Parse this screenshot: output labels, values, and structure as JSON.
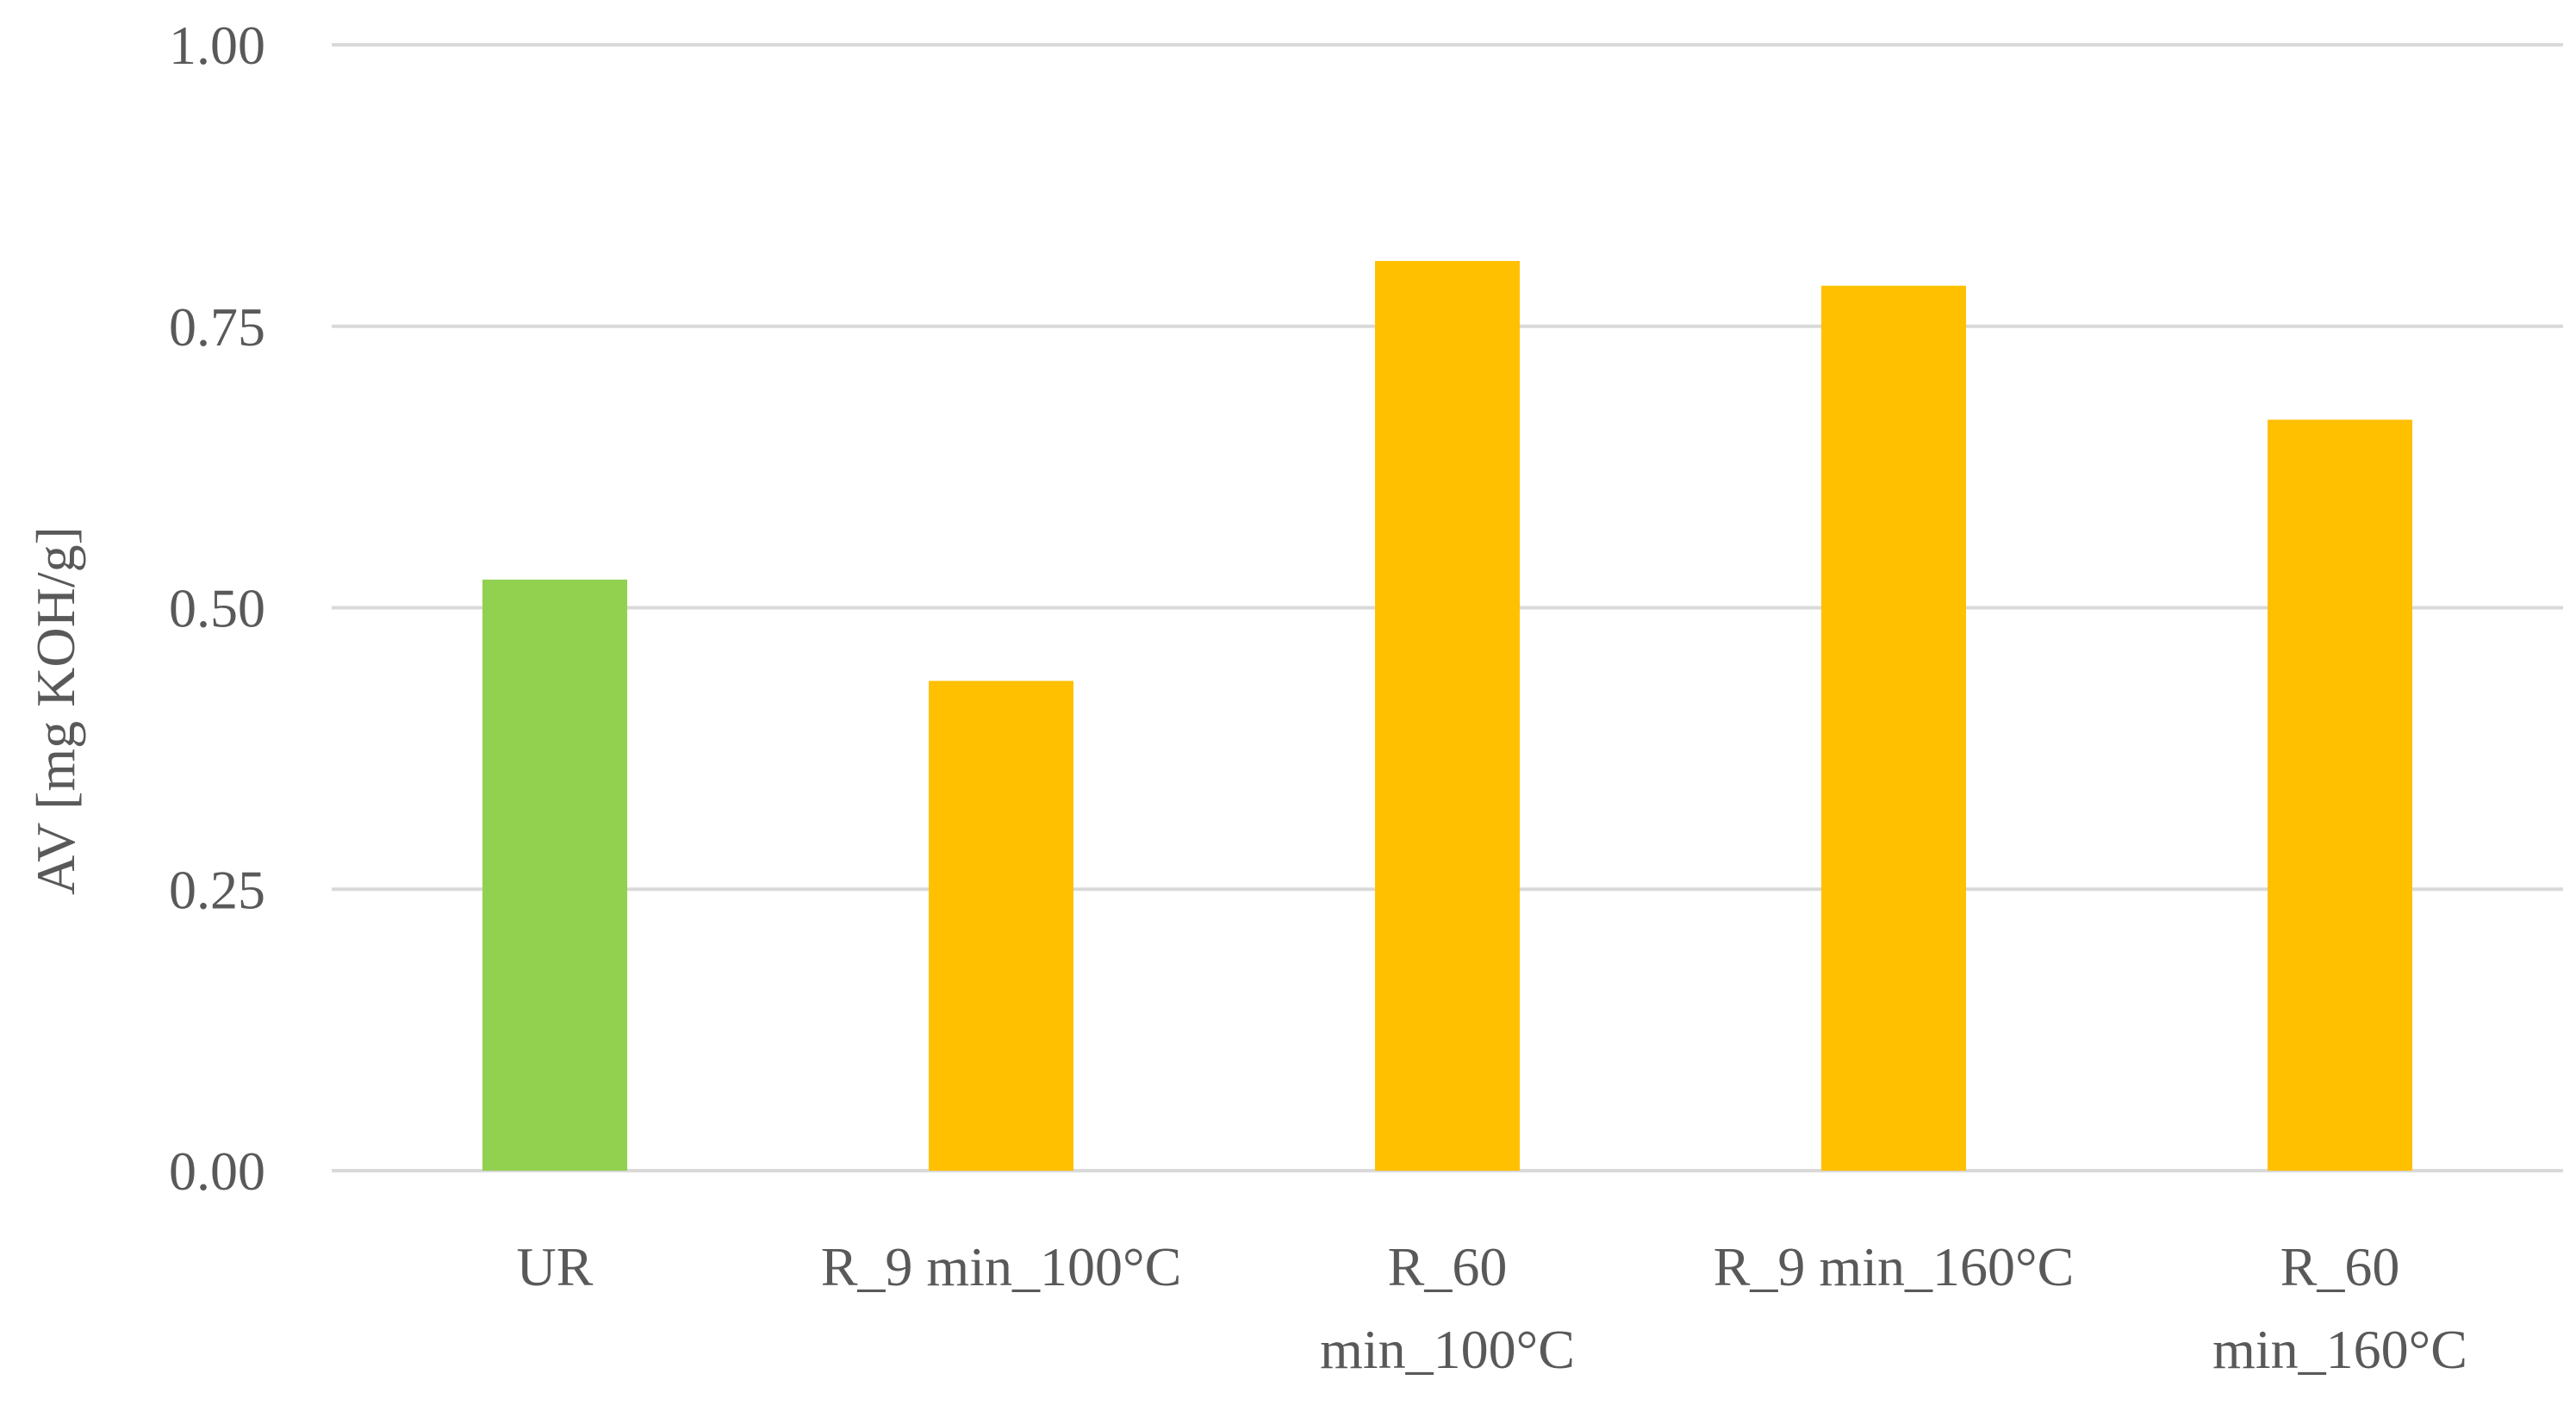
{
  "chart_data": {
    "type": "bar",
    "title": "",
    "xlabel": "",
    "ylabel": "AV [mg KOH/g]",
    "ylim": [
      0,
      1
    ],
    "yticks": [
      "0.00",
      "0.25",
      "0.50",
      "0.75",
      "1.00"
    ],
    "grid": true,
    "categories": [
      [
        "UR"
      ],
      [
        "R_9 min_100°C"
      ],
      [
        "R_60",
        "min_100°C"
      ],
      [
        "R_9 min_160°C"
      ],
      [
        "R_60",
        "min_160°C"
      ]
    ],
    "values": [
      0.525,
      0.435,
      0.808,
      0.786,
      0.667
    ],
    "bar_colors": [
      "#92D050",
      "#FFC000",
      "#FFC000",
      "#FFC000",
      "#FFC000"
    ],
    "gridline_color": "#D9D9D9",
    "text_color": "#595959"
  }
}
